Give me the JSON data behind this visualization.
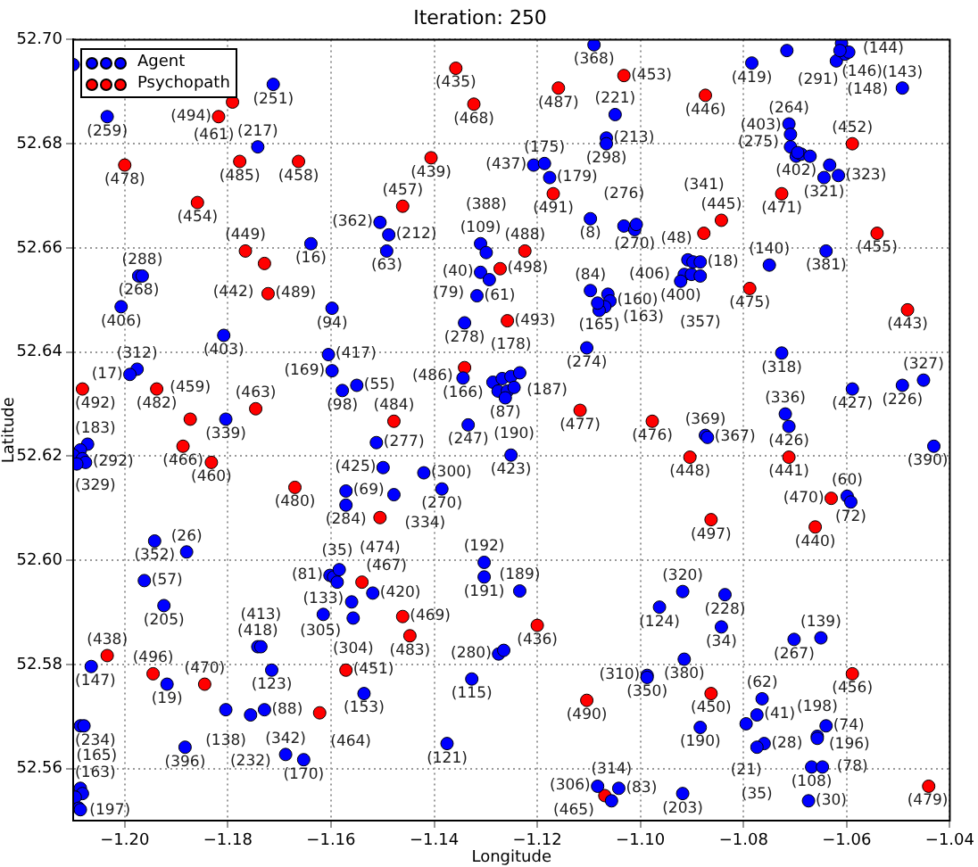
{
  "chart_data": {
    "type": "scatter",
    "title": "Iteration: 250",
    "xlabel": "Longitude",
    "ylabel": "Latitude",
    "xlim": [
      -1.21,
      -1.04
    ],
    "ylim": [
      52.55,
      52.7
    ],
    "xticks": [
      {
        "value": -1.2,
        "label": "−1.20"
      },
      {
        "value": -1.18,
        "label": "−1.18"
      },
      {
        "value": -1.16,
        "label": "−1.16"
      },
      {
        "value": -1.14,
        "label": "−1.14"
      },
      {
        "value": -1.12,
        "label": "−1.12"
      },
      {
        "value": -1.1,
        "label": "−1.10"
      },
      {
        "value": -1.08,
        "label": "−1.08"
      },
      {
        "value": -1.06,
        "label": "−1.06"
      },
      {
        "value": -1.04,
        "label": "−1.04"
      }
    ],
    "yticks": [
      {
        "value": 52.56,
        "label": "52.56"
      },
      {
        "value": 52.58,
        "label": "52.58"
      },
      {
        "value": 52.6,
        "label": "52.60"
      },
      {
        "value": 52.62,
        "label": "52.62"
      },
      {
        "value": 52.64,
        "label": "52.64"
      },
      {
        "value": 52.66,
        "label": "52.66"
      },
      {
        "value": 52.68,
        "label": "52.68"
      },
      {
        "value": 52.7,
        "label": "52.70"
      }
    ],
    "grid": true,
    "legend": "top left",
    "marker": "circle",
    "series": [
      {
        "name": "Agent",
        "color": "#0000ff",
        "x": [
          -1.21,
          -1.1712,
          -1.2034,
          -1.1742,
          -1.1639,
          -1.1973,
          -1.1966,
          -1.2007,
          -1.1598,
          -1.1808,
          -1.1976,
          -1.199,
          -1.1605,
          -1.1598,
          -1.1578,
          -1.109,
          -1.1049,
          -1.1066,
          -1.1066,
          -1.1207,
          -1.1186,
          -1.1176,
          -1.1097,
          -1.1505,
          -1.1488,
          -1.1492,
          -1.131,
          -1.1299,
          -1.131,
          -1.1293,
          -1.1317,
          -1.1341,
          -1.1104,
          -1.1097,
          -1.1063,
          -1.1059,
          -1.1069,
          -1.108,
          -1.1083,
          -1.1032,
          -1.1011,
          -1.1008,
          -1.1344,
          -1.1286,
          -1.1268,
          -1.1251,
          -1.1234,
          -1.1276,
          -1.1258,
          -1.1245,
          -1.1262,
          -1.155,
          -1.0784,
          -1.0716,
          -1.061,
          -1.062,
          -1.0603,
          -1.0596,
          -1.0613,
          -1.0492,
          -1.0712,
          -1.0709,
          -1.0709,
          -1.0698,
          -1.0688,
          -1.0671,
          -1.0695,
          -1.0633,
          -1.0644,
          -1.0616,
          -1.064,
          -1.075,
          -1.0726,
          -1.0589,
          -1.0492,
          -1.0451,
          -1.0908,
          -1.0898,
          -1.0884,
          -1.0915,
          -1.0901,
          -1.0884,
          -1.0922,
          -1.0719,
          -1.0712,
          -1.0874,
          -1.087,
          -1.0431,
          -1.0599,
          -1.0592,
          -1.0918,
          -1.0963,
          -1.0836,
          -1.0843,
          -1.0702,
          -1.065,
          -1.0915,
          -1.0987,
          -1.0987,
          -1.0764,
          -1.0774,
          -1.0884,
          -1.0795,
          -1.076,
          -1.0774,
          -1.0657,
          -1.0657,
          -1.064,
          -1.0668,
          -1.0647,
          -1.0674,
          -1.0918,
          -1.1804,
          -1.2072,
          -1.2086,
          -1.21,
          -1.2082,
          -1.2076,
          -1.2093,
          -1.1942,
          -1.188,
          -1.1962,
          -1.1924,
          -1.2065,
          -1.1918,
          -1.1742,
          -1.1736,
          -1.1715,
          -1.1804,
          -1.1756,
          -1.1729,
          -1.2086,
          -1.2079,
          -1.1883,
          -1.1688,
          -1.1653,
          -1.2086,
          -1.2082,
          -1.2096,
          -1.2089,
          -1.2086,
          -1.1512,
          -1.1499,
          -1.1334,
          -1.1251,
          -1.142,
          -1.1385,
          -1.1478,
          -1.1571,
          -1.1571,
          -1.1303,
          -1.1303,
          -1.1234,
          -1.1275,
          -1.1265,
          -1.1327,
          -1.1375,
          -1.1083,
          -1.1042,
          -1.1056,
          -1.1519,
          -1.156,
          -1.1557,
          -1.1536,
          -1.1615,
          -1.1602,
          -1.1595,
          -1.1584,
          -1.1588
        ],
        "values": [
          52.6952,
          52.6914,
          52.6852,
          52.6794,
          52.6608,
          52.6546,
          52.6546,
          52.6487,
          52.6484,
          52.6432,
          52.6367,
          52.6357,
          52.6395,
          52.6364,
          52.6326,
          52.699,
          52.6856,
          52.6811,
          52.68,
          52.6759,
          52.6762,
          52.6735,
          52.6656,
          52.6649,
          52.6625,
          52.6594,
          52.6608,
          52.6591,
          52.6553,
          52.6539,
          52.6508,
          52.6456,
          52.6408,
          52.6518,
          52.6511,
          52.6498,
          52.6487,
          52.648,
          52.6494,
          52.6642,
          52.6635,
          52.6645,
          52.635,
          52.6342,
          52.6349,
          52.6353,
          52.636,
          52.6325,
          52.6325,
          52.6332,
          52.6312,
          52.6336,
          52.6955,
          52.6979,
          52.6993,
          52.6959,
          52.6972,
          52.6976,
          52.6979,
          52.6907,
          52.6838,
          52.6818,
          52.6794,
          52.6776,
          52.678,
          52.6776,
          52.6783,
          52.6759,
          52.6735,
          52.6739,
          52.6594,
          52.6567,
          52.6398,
          52.6329,
          52.6336,
          52.6346,
          52.6577,
          52.6573,
          52.6573,
          52.6549,
          52.6549,
          52.6546,
          52.6536,
          52.6281,
          52.6257,
          52.624,
          52.6236,
          52.6219,
          52.6123,
          52.6112,
          52.594,
          52.591,
          52.5934,
          52.5872,
          52.5848,
          52.5851,
          52.581,
          52.5779,
          52.5775,
          52.5734,
          52.5703,
          52.5679,
          52.5686,
          52.5648,
          52.5641,
          52.5662,
          52.5658,
          52.5682,
          52.5603,
          52.5603,
          52.5538,
          52.5552,
          52.6271,
          52.6223,
          52.6212,
          52.6202,
          52.6195,
          52.6188,
          52.6185,
          52.6037,
          52.6016,
          52.5961,
          52.5913,
          52.5796,
          52.5762,
          52.5834,
          52.5834,
          52.5789,
          52.5713,
          52.5703,
          52.5713,
          52.5682,
          52.5682,
          52.5641,
          52.5627,
          52.5617,
          52.5562,
          52.5552,
          52.5545,
          52.5524,
          52.5521,
          52.6226,
          52.6178,
          52.626,
          52.6202,
          52.6168,
          52.6137,
          52.6126,
          52.6133,
          52.6106,
          52.5996,
          52.5968,
          52.5941,
          52.582,
          52.5827,
          52.5772,
          52.5648,
          52.5566,
          52.5562,
          52.5538,
          52.5937,
          52.592,
          52.5889,
          52.5744,
          52.5896,
          52.5971,
          52.5968,
          52.5982,
          52.5958
        ]
      },
      {
        "name": "Psychopath",
        "color": "#ff0000",
        "x": [
          -1.1791,
          -1.1818,
          -1.1777,
          -1.1663,
          -1.2,
          -1.1859,
          -1.1766,
          -1.1729,
          -1.1722,
          -1.2082,
          -1.1938,
          -1.1746,
          -1.1358,
          -1.1323,
          -1.1159,
          -1.1032,
          -1.1406,
          -1.1169,
          -1.1461,
          -1.1224,
          -1.1272,
          -1.1258,
          -1.1341,
          -1.1117,
          -1.1478,
          -1.0874,
          -1.0589,
          -1.0726,
          -1.0843,
          -1.0877,
          -1.0541,
          -1.0788,
          -1.0482,
          -1.0977,
          -1.0904,
          -1.0712,
          -1.063,
          -1.0863,
          -1.0661,
          -1.0589,
          -1.0863,
          -1.0441,
          -1.1873,
          -1.1887,
          -1.1832,
          -1.167,
          -1.2034,
          -1.1945,
          -1.1845,
          -1.1622,
          -1.1505,
          -1.12,
          -1.1104,
          -1.1069,
          -1.154,
          -1.1461,
          -1.1447,
          -1.1571
        ],
        "values": [
          52.688,
          52.6852,
          52.6766,
          52.6766,
          52.6759,
          52.6687,
          52.6594,
          52.657,
          52.6512,
          52.6329,
          52.6329,
          52.6291,
          52.6945,
          52.6876,
          52.6907,
          52.6931,
          52.6773,
          52.6704,
          52.668,
          52.6594,
          52.656,
          52.646,
          52.637,
          52.6288,
          52.6267,
          52.6893,
          52.68,
          52.6704,
          52.6653,
          52.6628,
          52.6628,
          52.6522,
          52.6481,
          52.6267,
          52.6198,
          52.6198,
          52.6119,
          52.6078,
          52.6064,
          52.5782,
          52.5744,
          52.5566,
          52.6271,
          52.6219,
          52.6188,
          52.614,
          52.5817,
          52.5782,
          52.5762,
          52.5707,
          52.6082,
          52.5875,
          52.5731,
          52.5548,
          52.5958,
          52.5892,
          52.5855,
          52.5789
        ]
      }
    ],
    "annotations": [
      {
        "text": "(251)",
        "x": -1.1712,
        "y": 52.6914
      },
      {
        "text": "(259)",
        "x": -1.2034,
        "y": 52.6852
      },
      {
        "text": "(217)",
        "x": -1.1742,
        "y": 52.6794
      },
      {
        "text": "(16)",
        "x": -1.1639,
        "y": 52.6608
      },
      {
        "text": "(268)",
        "x": -1.1973,
        "y": 52.6546
      },
      {
        "text": "(406)",
        "x": -1.2007,
        "y": 52.6487
      },
      {
        "text": "(94)",
        "x": -1.1598,
        "y": 52.6484
      },
      {
        "text": "(403)",
        "x": -1.1808,
        "y": 52.6432
      },
      {
        "text": "(312)",
        "x": -1.1976,
        "y": 52.6367
      },
      {
        "text": "(417)",
        "x": -1.1605,
        "y": 52.6395
      },
      {
        "text": "(98)",
        "x": -1.1578,
        "y": 52.6326
      },
      {
        "text": "(368)",
        "x": -1.109,
        "y": 52.699
      },
      {
        "text": "(221)",
        "x": -1.1049,
        "y": 52.6856
      },
      {
        "text": "(298)",
        "x": -1.1066,
        "y": 52.68
      },
      {
        "text": "(437)",
        "x": -1.1207,
        "y": 52.6759
      },
      {
        "text": "(179)",
        "x": -1.1176,
        "y": 52.6735
      },
      {
        "text": "(8)",
        "x": -1.1097,
        "y": 52.6656
      },
      {
        "text": "(362)",
        "x": -1.1505,
        "y": 52.6649
      },
      {
        "text": "(63)",
        "x": -1.1492,
        "y": 52.6594
      },
      {
        "text": "(109)",
        "x": -1.131,
        "y": 52.6608
      },
      {
        "text": "(40)",
        "x": -1.131,
        "y": 52.6553
      },
      {
        "text": "(61)",
        "x": -1.1317,
        "y": 52.6508
      },
      {
        "text": "(278)",
        "x": -1.1341,
        "y": 52.6456
      },
      {
        "text": "(274)",
        "x": -1.1104,
        "y": 52.6408
      },
      {
        "text": "(84)",
        "x": -1.1097,
        "y": 52.6518
      },
      {
        "text": "(165)",
        "x": -1.108,
        "y": 52.648
      },
      {
        "text": "(270)",
        "x": -1.1011,
        "y": 52.6635
      },
      {
        "text": "(166)",
        "x": -1.1344,
        "y": 52.635
      },
      {
        "text": "(178)",
        "x": -1.1251,
        "y": 52.6353
      },
      {
        "text": "(87)",
        "x": -1.1262,
        "y": 52.6312
      },
      {
        "text": "(55)",
        "x": -1.155,
        "y": 52.6336
      },
      {
        "text": "(419)",
        "x": -1.0784,
        "y": 52.6955
      },
      {
        "text": "(291)",
        "x": -1.0716,
        "y": 52.6979
      },
      {
        "text": "(148)",
        "x": -1.062,
        "y": 52.6959
      },
      {
        "text": "(143)",
        "x": -1.0492,
        "y": 52.6907
      },
      {
        "text": "(264)",
        "x": -1.0712,
        "y": 52.6838
      },
      {
        "text": "(402)",
        "x": -1.0698,
        "y": 52.6776
      },
      {
        "text": "(323)",
        "x": -1.0616,
        "y": 52.6739
      },
      {
        "text": "(381)",
        "x": -1.064,
        "y": 52.6594
      },
      {
        "text": "(140)",
        "x": -1.075,
        "y": 52.6567
      },
      {
        "text": "(318)",
        "x": -1.0726,
        "y": 52.6398
      },
      {
        "text": "(427)",
        "x": -1.0589,
        "y": 52.6329
      },
      {
        "text": "(226)",
        "x": -1.0492,
        "y": 52.6336
      },
      {
        "text": "(327)",
        "x": -1.0451,
        "y": 52.6346
      },
      {
        "text": "(400)",
        "x": -1.0922,
        "y": 52.6536
      },
      {
        "text": "(336)",
        "x": -1.0719,
        "y": 52.6281
      },
      {
        "text": "(426)",
        "x": -1.0712,
        "y": 52.6257
      },
      {
        "text": "(367)",
        "x": -1.087,
        "y": 52.6236
      },
      {
        "text": "(390)",
        "x": -1.0431,
        "y": 52.6219
      },
      {
        "text": "(72)",
        "x": -1.0592,
        "y": 52.6112
      },
      {
        "text": "(320)",
        "x": -1.0918,
        "y": 52.594
      },
      {
        "text": "(124)",
        "x": -1.0963,
        "y": 52.591
      },
      {
        "text": "(228)",
        "x": -1.0836,
        "y": 52.5934
      },
      {
        "text": "(34)",
        "x": -1.0843,
        "y": 52.5872
      },
      {
        "text": "(267)",
        "x": -1.0702,
        "y": 52.5848
      },
      {
        "text": "(139)",
        "x": -1.065,
        "y": 52.5851
      },
      {
        "text": "(380)",
        "x": -1.0915,
        "y": 52.581
      },
      {
        "text": "(350)",
        "x": -1.0987,
        "y": 52.5775
      },
      {
        "text": "(62)",
        "x": -1.0764,
        "y": 52.5734
      },
      {
        "text": "(41)",
        "x": -1.0774,
        "y": 52.5703
      },
      {
        "text": "(190)",
        "x": -1.0884,
        "y": 52.5679
      },
      {
        "text": "(28)",
        "x": -1.076,
        "y": 52.5648
      },
      {
        "text": "(198)",
        "x": -1.0657,
        "y": 52.5658
      },
      {
        "text": "(74)",
        "x": -1.064,
        "y": 52.5682
      },
      {
        "text": "(108)",
        "x": -1.0668,
        "y": 52.5603
      },
      {
        "text": "(30)",
        "x": -1.0674,
        "y": 52.5538
      },
      {
        "text": "(203)",
        "x": -1.0918,
        "y": 52.5552
      },
      {
        "text": "(339)",
        "x": -1.1804,
        "y": 52.6271
      },
      {
        "text": "(292)",
        "x": -1.2076,
        "y": 52.6188
      },
      {
        "text": "(352)",
        "x": -1.1942,
        "y": 52.6037
      },
      {
        "text": "(26)",
        "x": -1.188,
        "y": 52.6016
      },
      {
        "text": "(57)",
        "x": -1.1962,
        "y": 52.5961
      },
      {
        "text": "(205)",
        "x": -1.1924,
        "y": 52.5913
      },
      {
        "text": "(147)",
        "x": -1.2065,
        "y": 52.5796
      },
      {
        "text": "(19)",
        "x": -1.1918,
        "y": 52.5762
      },
      {
        "text": "(418)",
        "x": -1.1742,
        "y": 52.5834
      },
      {
        "text": "(123)",
        "x": -1.1715,
        "y": 52.5789
      },
      {
        "text": "(138)",
        "x": -1.1804,
        "y": 52.5713
      },
      {
        "text": "(88)",
        "x": -1.1729,
        "y": 52.5713
      },
      {
        "text": "(234)",
        "x": -1.2086,
        "y": 52.5682
      },
      {
        "text": "(396)",
        "x": -1.1883,
        "y": 52.5641
      },
      {
        "text": "(342)",
        "x": -1.1688,
        "y": 52.5627
      },
      {
        "text": "(197)",
        "x": -1.2089,
        "y": 52.5524
      },
      {
        "text": "(277)",
        "x": -1.1512,
        "y": 52.6226
      },
      {
        "text": "(425)",
        "x": -1.1499,
        "y": 52.6178
      },
      {
        "text": "(247)",
        "x": -1.1334,
        "y": 52.626
      },
      {
        "text": "(423)",
        "x": -1.1251,
        "y": 52.6202
      },
      {
        "text": "(300)",
        "x": -1.142,
        "y": 52.6168
      },
      {
        "text": "(270)",
        "x": -1.1385,
        "y": 52.6137
      },
      {
        "text": "(334)",
        "x": -1.1478,
        "y": 52.6126
      },
      {
        "text": "(69)",
        "x": -1.1571,
        "y": 52.6133
      },
      {
        "text": "(284)",
        "x": -1.1571,
        "y": 52.6106
      },
      {
        "text": "(192)",
        "x": -1.1303,
        "y": 52.5996
      },
      {
        "text": "(191)",
        "x": -1.1303,
        "y": 52.5968
      },
      {
        "text": "(189)",
        "x": -1.1234,
        "y": 52.5941
      },
      {
        "text": "(280)",
        "x": -1.1275,
        "y": 52.582
      },
      {
        "text": "(115)",
        "x": -1.1327,
        "y": 52.5772
      },
      {
        "text": "(121)",
        "x": -1.1375,
        "y": 52.5648
      },
      {
        "text": "(314)",
        "x": -1.1056,
        "y": 52.5538
      },
      {
        "text": "(420)",
        "x": -1.1519,
        "y": 52.5937
      },
      {
        "text": "(305)",
        "x": -1.156,
        "y": 52.592
      },
      {
        "text": "(304)",
        "x": -1.1557,
        "y": 52.5889
      },
      {
        "text": "(153)",
        "x": -1.1536,
        "y": 52.5744
      },
      {
        "text": "(133)",
        "x": -1.1615,
        "y": 52.5896
      },
      {
        "text": "(461)",
        "x": -1.1791,
        "y": 52.688
      },
      {
        "text": "(494)",
        "x": -1.1818,
        "y": 52.6852
      },
      {
        "text": "(485)",
        "x": -1.1777,
        "y": 52.6766
      },
      {
        "text": "(458)",
        "x": -1.1663,
        "y": 52.6766
      },
      {
        "text": "(478)",
        "x": -1.2,
        "y": 52.6759
      },
      {
        "text": "(454)",
        "x": -1.1859,
        "y": 52.6687
      },
      {
        "text": "(449)",
        "x": -1.1766,
        "y": 52.6594
      },
      {
        "text": "(442)",
        "x": -1.1729,
        "y": 52.657
      },
      {
        "text": "(489)",
        "x": -1.1722,
        "y": 52.6512
      },
      {
        "text": "(492)",
        "x": -1.2082,
        "y": 52.6329
      },
      {
        "text": "(482)",
        "x": -1.1938,
        "y": 52.6329
      },
      {
        "text": "(463)",
        "x": -1.1746,
        "y": 52.6291
      },
      {
        "text": "(435)",
        "x": -1.1358,
        "y": 52.6945
      },
      {
        "text": "(468)",
        "x": -1.1323,
        "y": 52.6876
      },
      {
        "text": "(487)",
        "x": -1.1159,
        "y": 52.6907
      },
      {
        "text": "(453)",
        "x": -1.1032,
        "y": 52.6931
      },
      {
        "text": "(439)",
        "x": -1.1406,
        "y": 52.6773
      },
      {
        "text": "(491)",
        "x": -1.1169,
        "y": 52.6704
      },
      {
        "text": "(457)",
        "x": -1.1461,
        "y": 52.668
      },
      {
        "text": "(488)",
        "x": -1.1224,
        "y": 52.6594
      },
      {
        "text": "(498)",
        "x": -1.1272,
        "y": 52.656
      },
      {
        "text": "(493)",
        "x": -1.1258,
        "y": 52.646
      },
      {
        "text": "(486)",
        "x": -1.1341,
        "y": 52.637
      },
      {
        "text": "(477)",
        "x": -1.1117,
        "y": 52.6288
      },
      {
        "text": "(484)",
        "x": -1.1478,
        "y": 52.6267
      },
      {
        "text": "(446)",
        "x": -1.0874,
        "y": 52.6893
      },
      {
        "text": "(452)",
        "x": -1.0589,
        "y": 52.68
      },
      {
        "text": "(471)",
        "x": -1.0726,
        "y": 52.6704
      },
      {
        "text": "(445)",
        "x": -1.0843,
        "y": 52.6653
      },
      {
        "text": "(455)",
        "x": -1.0541,
        "y": 52.6628
      },
      {
        "text": "(475)",
        "x": -1.0788,
        "y": 52.6522
      },
      {
        "text": "(443)",
        "x": -1.0482,
        "y": 52.6481
      },
      {
        "text": "(476)",
        "x": -1.0977,
        "y": 52.6267
      },
      {
        "text": "(448)",
        "x": -1.0904,
        "y": 52.6198
      },
      {
        "text": "(441)",
        "x": -1.0712,
        "y": 52.6198
      },
      {
        "text": "(470)",
        "x": -1.063,
        "y": 52.6119
      },
      {
        "text": "(497)",
        "x": -1.0863,
        "y": 52.6078
      },
      {
        "text": "(440)",
        "x": -1.0661,
        "y": 52.6064
      },
      {
        "text": "(456)",
        "x": -1.0589,
        "y": 52.5782
      },
      {
        "text": "(450)",
        "x": -1.0863,
        "y": 52.5744
      },
      {
        "text": "(479)",
        "x": -1.0441,
        "y": 52.5566
      },
      {
        "text": "(459)",
        "x": -1.1873,
        "y": 52.6271
      },
      {
        "text": "(466)",
        "x": -1.1887,
        "y": 52.6219
      },
      {
        "text": "(460)",
        "x": -1.1832,
        "y": 52.6188
      },
      {
        "text": "(480)",
        "x": -1.167,
        "y": 52.614
      },
      {
        "text": "(438)",
        "x": -1.2034,
        "y": 52.5817
      },
      {
        "text": "(496)",
        "x": -1.1945,
        "y": 52.5782
      },
      {
        "text": "(470)",
        "x": -1.1845,
        "y": 52.5762
      },
      {
        "text": "(464)",
        "x": -1.1622,
        "y": 52.5707
      },
      {
        "text": "(474)",
        "x": -1.1505,
        "y": 52.6082
      },
      {
        "text": "(436)",
        "x": -1.12,
        "y": 52.5875
      },
      {
        "text": "(490)",
        "x": -1.1104,
        "y": 52.5731
      },
      {
        "text": "(467)",
        "x": -1.154,
        "y": 52.5958
      },
      {
        "text": "(469)",
        "x": -1.1461,
        "y": 52.5892
      },
      {
        "text": "(483)",
        "x": -1.1447,
        "y": 52.5855
      },
      {
        "text": "(451)",
        "x": -1.1571,
        "y": 52.5789
      },
      {
        "text": "(465)",
        "x": -1.1069,
        "y": 52.5548
      },
      {
        "text": "(288)",
        "x": -1.1966,
        "y": 52.6546
      },
      {
        "text": "(17)",
        "x": -1.199,
        "y": 52.6357
      },
      {
        "text": "(169)",
        "x": -1.1598,
        "y": 52.6364
      },
      {
        "text": "(213)",
        "x": -1.1066,
        "y": 52.6811
      },
      {
        "text": "(175)",
        "x": -1.1186,
        "y": 52.6762
      },
      {
        "text": "(212)",
        "x": -1.1488,
        "y": 52.6625
      },
      {
        "text": "(388)",
        "x": -1.1299,
        "y": 52.6591
      },
      {
        "text": "(79)",
        "x": -1.1293,
        "y": 52.6539
      },
      {
        "text": "(160)",
        "x": -1.1059,
        "y": 52.6498
      },
      {
        "text": "(163)",
        "x": -1.1069,
        "y": 52.6487
      },
      {
        "text": "(276)",
        "x": -1.1032,
        "y": 52.6642
      },
      {
        "text": "(187)",
        "x": -1.1276,
        "y": 52.6325
      },
      {
        "text": "(190)",
        "x": -1.1245,
        "y": 52.6332
      },
      {
        "text": "(144)",
        "x": -1.061,
        "y": 52.6993
      },
      {
        "text": "(146)",
        "x": -1.0596,
        "y": 52.6976
      },
      {
        "text": "(275)",
        "x": -1.0709,
        "y": 52.6818
      },
      {
        "text": "(403)",
        "x": -1.0709,
        "y": 52.6794
      },
      {
        "text": "(321)",
        "x": -1.0644,
        "y": 52.6735
      },
      {
        "text": "(48)",
        "x": -1.0908,
        "y": 52.6577
      },
      {
        "text": "(18)",
        "x": -1.0884,
        "y": 52.6573
      },
      {
        "text": "(406)",
        "x": -1.0915,
        "y": 52.6549
      },
      {
        "text": "(357)",
        "x": -1.0884,
        "y": 52.6546
      },
      {
        "text": "(369)",
        "x": -1.0874,
        "y": 52.624
      },
      {
        "text": "(60)",
        "x": -1.0599,
        "y": 52.6123
      },
      {
        "text": "(310)",
        "x": -1.0987,
        "y": 52.5779
      },
      {
        "text": "(21)",
        "x": -1.0795,
        "y": 52.5686
      },
      {
        "text": "(35)",
        "x": -1.0774,
        "y": 52.5641
      },
      {
        "text": "(196)",
        "x": -1.0657,
        "y": 52.5662
      },
      {
        "text": "(78)",
        "x": -1.0647,
        "y": 52.5603
      },
      {
        "text": "(183)",
        "x": -1.2072,
        "y": 52.6223
      },
      {
        "text": "(329)",
        "x": -1.21,
        "y": 52.6202
      },
      {
        "text": "(413)",
        "x": -1.1736,
        "y": 52.5834
      },
      {
        "text": "(232)",
        "x": -1.1756,
        "y": 52.5703
      },
      {
        "text": "(170)",
        "x": -1.1653,
        "y": 52.5617
      },
      {
        "text": "(163)",
        "x": -1.2086,
        "y": 52.5562
      },
      {
        "text": "(165)",
        "x": -1.2096,
        "y": 52.5545
      },
      {
        "text": "(306)",
        "x": -1.1083,
        "y": 52.5566
      },
      {
        "text": "(81)",
        "x": -1.1602,
        "y": 52.5971
      },
      {
        "text": "(341)",
        "x": -1.0877,
        "y": 52.6628
      },
      {
        "text": "(83)",
        "x": -1.1042,
        "y": 52.5562
      },
      {
        "text": "(35)",
        "x": -1.1588,
        "y": 52.5958
      }
    ]
  }
}
